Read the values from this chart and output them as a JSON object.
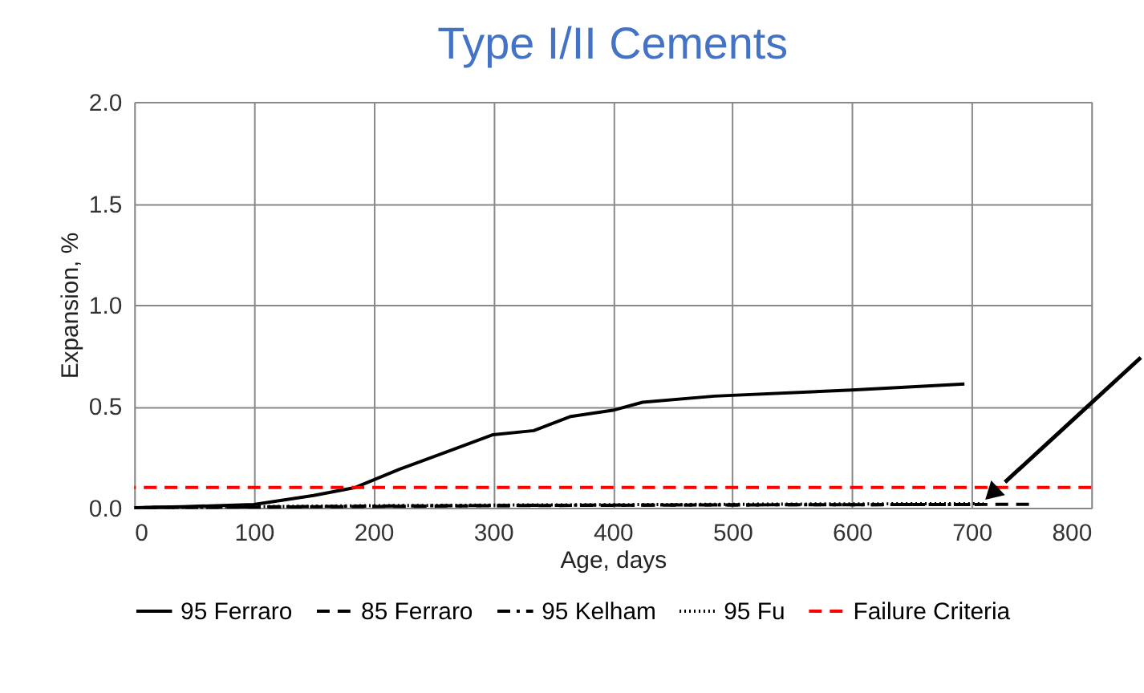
{
  "chart_data": {
    "type": "line",
    "title": "Type I/II Cements",
    "xlabel": "Age, days",
    "ylabel": "Expansion, %",
    "xlim": [
      0,
      800
    ],
    "xticks": [
      0,
      100,
      200,
      300,
      400,
      500,
      600,
      700,
      800
    ],
    "ylim": [
      0,
      2.0
    ],
    "yticks": [
      {
        "value": 0,
        "label": "0.0"
      },
      0.5,
      {
        "value": 1,
        "label": "1.0"
      },
      1.5,
      {
        "value": 2,
        "label": "2.0"
      }
    ],
    "grid": true,
    "legend": "bottom",
    "marker": "none",
    "series": [
      {
        "name": "95 Ferraro",
        "color": "#000000",
        "line_style": "solid",
        "x": [
          0,
          40,
          100,
          150,
          185,
          222,
          268,
          300,
          334,
          365,
          400,
          425,
          485,
          600,
          694
        ],
        "values": [
          0,
          0.005,
          0.016,
          0.06,
          0.1,
          0.19,
          0.29,
          0.36,
          0.38,
          0.45,
          0.48,
          0.52,
          0.55,
          0.58,
          0.61
        ]
      },
      {
        "name": "85 Ferraro",
        "color": "#000000",
        "line_style": "dashed",
        "x": [
          8,
          100,
          200,
          300,
          400,
          500,
          600,
          700,
          750
        ],
        "values": [
          0.001,
          0.003,
          0.006,
          0.01,
          0.012,
          0.014,
          0.015,
          0.016,
          0.017
        ]
      },
      {
        "name": "95 Kelham",
        "color": "#000000",
        "line_style": "dashdot",
        "x": [
          15,
          100,
          200,
          300,
          400,
          500,
          600,
          700
        ],
        "values": [
          0.002,
          0.004,
          0.008,
          0.011,
          0.013,
          0.014,
          0.015,
          0.016
        ]
      },
      {
        "name": "95 Fu",
        "color": "#000000",
        "line_style": "dotted",
        "x": [
          28,
          100,
          200,
          300,
          400,
          500,
          600,
          710
        ],
        "values": [
          0.002,
          0.005,
          0.01,
          0.013,
          0.015,
          0.017,
          0.019,
          0.02
        ]
      }
    ],
    "ref_lines": [
      {
        "axis": "y",
        "value": 0.1,
        "label": "Failure Criteria",
        "color": "#ff0000",
        "line_style": "dashed"
      }
    ]
  }
}
